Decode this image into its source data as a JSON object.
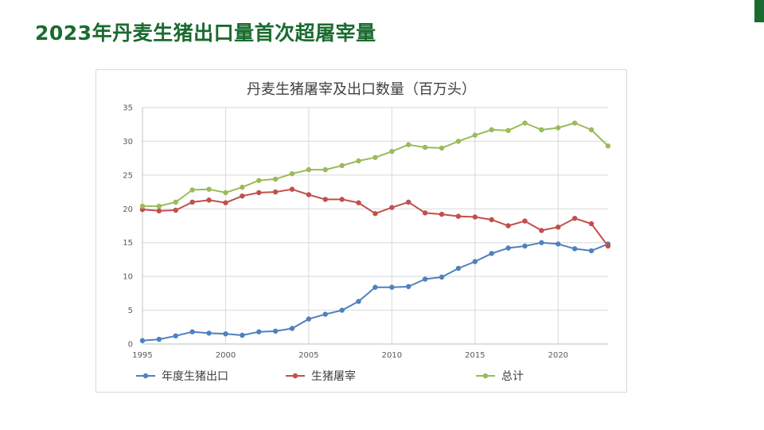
{
  "slide": {
    "title": "2023年丹麦生猪出口量首次超屠宰量",
    "accent_color": "#1a6b2f"
  },
  "chart_data": {
    "type": "line",
    "title": "丹麦生猪屠宰及出口数量（百万头）",
    "xlim": [
      1995,
      2023
    ],
    "ylim": [
      0,
      35
    ],
    "x_ticks": [
      1995,
      2000,
      2005,
      2010,
      2015,
      2020
    ],
    "y_ticks": [
      0,
      5,
      10,
      15,
      20,
      25,
      30,
      35
    ],
    "grid": true,
    "legend_position": "bottom",
    "x": [
      1995,
      1996,
      1997,
      1998,
      1999,
      2000,
      2001,
      2002,
      2003,
      2004,
      2005,
      2006,
      2007,
      2008,
      2009,
      2010,
      2011,
      2012,
      2013,
      2014,
      2015,
      2016,
      2017,
      2018,
      2019,
      2020,
      2021,
      2022,
      2023
    ],
    "series": [
      {
        "name": "年度生猪出口",
        "color": "#4f81bd",
        "values": [
          0.5,
          0.7,
          1.2,
          1.8,
          1.6,
          1.5,
          1.3,
          1.8,
          1.9,
          2.3,
          3.7,
          4.4,
          5.0,
          6.3,
          8.4,
          8.4,
          8.5,
          9.6,
          9.9,
          11.2,
          12.2,
          13.4,
          14.2,
          14.5,
          15.0,
          14.8,
          14.1,
          13.8,
          14.8
        ]
      },
      {
        "name": "生猪屠宰",
        "color": "#c0504d",
        "values": [
          19.9,
          19.7,
          19.8,
          21.0,
          21.3,
          20.9,
          21.9,
          22.4,
          22.5,
          22.9,
          22.1,
          21.4,
          21.4,
          20.9,
          19.3,
          20.2,
          21.0,
          19.4,
          19.2,
          18.9,
          18.8,
          18.4,
          17.5,
          18.2,
          16.8,
          17.3,
          18.6,
          17.8,
          14.5
        ]
      },
      {
        "name": "总计",
        "color": "#9bbb59",
        "values": [
          20.4,
          20.4,
          21.0,
          22.8,
          22.9,
          22.4,
          23.2,
          24.2,
          24.4,
          25.2,
          25.8,
          25.8,
          26.4,
          27.1,
          27.6,
          28.5,
          29.5,
          29.1,
          29.0,
          30.0,
          30.9,
          31.7,
          31.6,
          32.7,
          31.7,
          32.0,
          32.7,
          31.7,
          29.3
        ]
      }
    ]
  }
}
